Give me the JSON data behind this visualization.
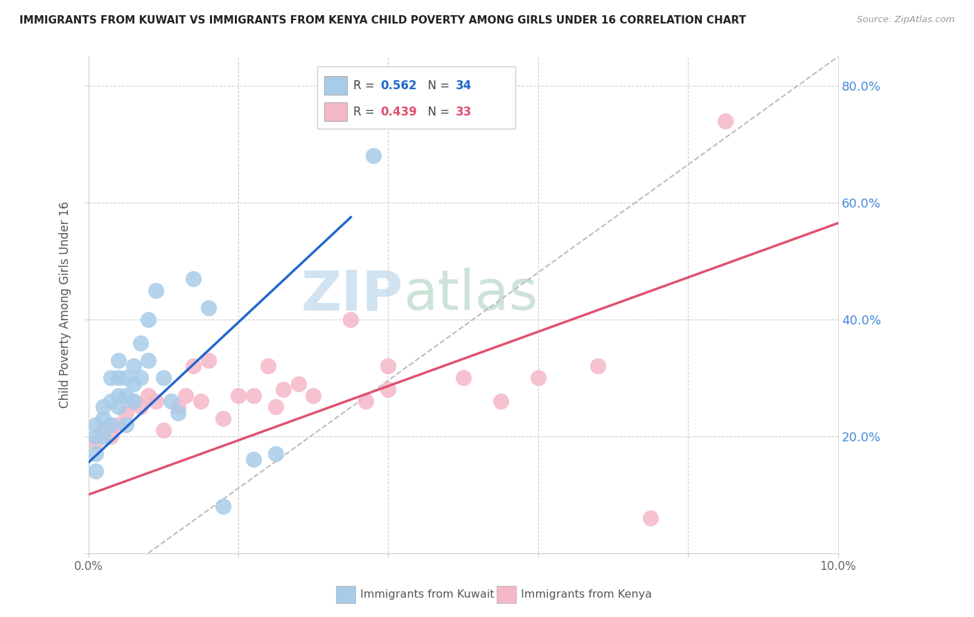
{
  "title": "IMMIGRANTS FROM KUWAIT VS IMMIGRANTS FROM KENYA CHILD POVERTY AMONG GIRLS UNDER 16 CORRELATION CHART",
  "source": "Source: ZipAtlas.com",
  "ylabel": "Child Poverty Among Girls Under 16",
  "xlim": [
    0.0,
    0.1
  ],
  "ylim": [
    0.0,
    0.85
  ],
  "kuwait_color": "#a8cce8",
  "kenya_color": "#f5b8c8",
  "line_kuwait_color": "#2266cc",
  "line_kenya_color": "#e05070",
  "diag_color": "#bbbbbb",
  "grid_color": "#cccccc",
  "watermark_color": "#cce0f0",
  "kuwait_x": [
    0.001,
    0.001,
    0.001,
    0.001,
    0.002,
    0.002,
    0.002,
    0.003,
    0.003,
    0.003,
    0.004,
    0.004,
    0.004,
    0.004,
    0.005,
    0.005,
    0.005,
    0.006,
    0.006,
    0.006,
    0.007,
    0.007,
    0.008,
    0.008,
    0.009,
    0.01,
    0.011,
    0.012,
    0.014,
    0.016,
    0.018,
    0.022,
    0.025,
    0.038
  ],
  "kuwait_y": [
    0.14,
    0.17,
    0.2,
    0.22,
    0.2,
    0.23,
    0.25,
    0.22,
    0.26,
    0.3,
    0.25,
    0.27,
    0.3,
    0.33,
    0.27,
    0.3,
    0.22,
    0.26,
    0.29,
    0.32,
    0.3,
    0.36,
    0.33,
    0.4,
    0.45,
    0.3,
    0.26,
    0.24,
    0.47,
    0.42,
    0.08,
    0.16,
    0.17,
    0.68
  ],
  "kenya_x": [
    0.001,
    0.002,
    0.003,
    0.004,
    0.005,
    0.006,
    0.007,
    0.008,
    0.009,
    0.01,
    0.012,
    0.013,
    0.014,
    0.015,
    0.016,
    0.018,
    0.02,
    0.022,
    0.024,
    0.025,
    0.026,
    0.028,
    0.03,
    0.035,
    0.037,
    0.04,
    0.04,
    0.05,
    0.055,
    0.06,
    0.068,
    0.075,
    0.085
  ],
  "kenya_y": [
    0.19,
    0.21,
    0.2,
    0.22,
    0.24,
    0.26,
    0.25,
    0.27,
    0.26,
    0.21,
    0.25,
    0.27,
    0.32,
    0.26,
    0.33,
    0.23,
    0.27,
    0.27,
    0.32,
    0.25,
    0.28,
    0.29,
    0.27,
    0.4,
    0.26,
    0.28,
    0.32,
    0.3,
    0.26,
    0.3,
    0.32,
    0.06,
    0.74
  ],
  "kuwait_line_x": [
    0.0,
    0.035
  ],
  "kuwait_line_y": [
    0.155,
    0.575
  ],
  "kenya_line_x": [
    0.0,
    0.1
  ],
  "kenya_line_y": [
    0.1,
    0.565
  ],
  "diag_line_x": [
    0.008,
    0.1
  ],
  "diag_line_y": [
    0.0,
    0.85
  ]
}
